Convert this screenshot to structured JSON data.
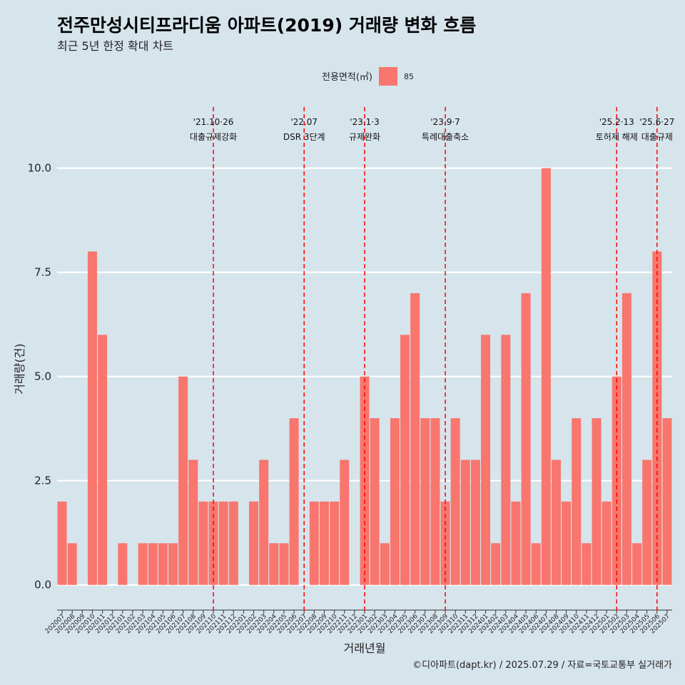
{
  "chart_data": {
    "type": "bar",
    "title": "전주만성시티프라디움 아파트(2019) 거래량 변화 흐름",
    "subtitle": "최근 5년 한정 확대 차트",
    "xlabel": "거래년월",
    "ylabel": "거래량(건)",
    "ylim": [
      -0.45,
      11.5
    ],
    "yticks": [
      "0.0",
      "2.5",
      "5.0",
      "7.5",
      "10.0"
    ],
    "ytick_values": [
      0,
      2.5,
      5,
      7.5,
      10
    ],
    "grid": true,
    "legend": {
      "position": "top",
      "title": "전용면적(㎡)",
      "entries": [
        "85"
      ]
    },
    "bar_color": "#f8766d",
    "event_line_color": "#ff0000",
    "categories": [
      "202007",
      "202008",
      "202009",
      "202010",
      "202011",
      "202012",
      "202101",
      "202102",
      "202103",
      "202104",
      "202105",
      "202106",
      "202107",
      "202108",
      "202109",
      "202110",
      "202111",
      "202112",
      "202201",
      "202202",
      "202203",
      "202204",
      "202205",
      "202206",
      "202207",
      "202208",
      "202209",
      "202210",
      "202211",
      "202212",
      "202301",
      "202302",
      "202303",
      "202304",
      "202305",
      "202306",
      "202307",
      "202308",
      "202309",
      "202310",
      "202311",
      "202312",
      "202401",
      "202402",
      "202403",
      "202404",
      "202405",
      "202406",
      "202407",
      "202408",
      "202409",
      "202410",
      "202411",
      "202412",
      "202501",
      "202502",
      "202503",
      "202504",
      "202505",
      "202506",
      "202507"
    ],
    "values": [
      2,
      1,
      0,
      8,
      6,
      0,
      1,
      0,
      1,
      1,
      1,
      1,
      5,
      3,
      2,
      2,
      2,
      2,
      0,
      2,
      3,
      1,
      1,
      4,
      0,
      2,
      2,
      2,
      3,
      0,
      5,
      4,
      1,
      4,
      6,
      7,
      4,
      4,
      2,
      4,
      3,
      3,
      6,
      1,
      6,
      2,
      7,
      1,
      10,
      3,
      2,
      4,
      1,
      4,
      2,
      5,
      7,
      1,
      3,
      8,
      4
    ],
    "events": [
      {
        "category": "202110",
        "date": "'21.10·26",
        "label": "대출규제강화"
      },
      {
        "category": "202207",
        "date": "'22.07",
        "label": "DSR 3단계"
      },
      {
        "category": "202301",
        "date": "'23.1·3",
        "label": "규제완화"
      },
      {
        "category": "202309",
        "date": "'23.9·7",
        "label": "특례대출축소"
      },
      {
        "category": "202502",
        "date": "'25.2·13",
        "label": "토허제 해제"
      },
      {
        "category": "202506",
        "date": "'25.6·27",
        "label": "대출규제"
      }
    ],
    "caption": "©디아파트(dapt.kr) / 2025.07.29 / 자료=국토교통부 실거래가"
  }
}
